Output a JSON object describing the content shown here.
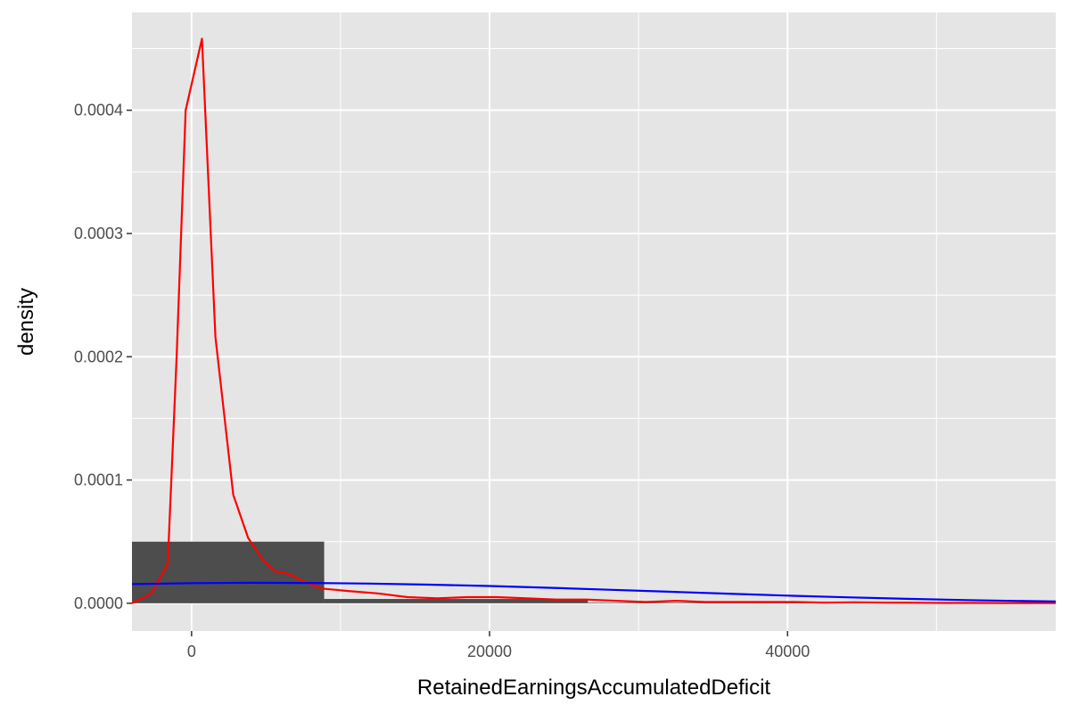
{
  "chart_data": {
    "type": "histogram",
    "title": "",
    "xlabel": "RetainedEarningsAccumulatedDeficit",
    "ylabel": "density",
    "xlim": [
      -4000,
      58000
    ],
    "ylim": [
      -2.25e-05,
      0.0004793
    ],
    "x_ticks": [
      {
        "value": 0,
        "label": "0"
      },
      {
        "value": 20000,
        "label": "20000"
      },
      {
        "value": 40000,
        "label": "40000"
      }
    ],
    "x_minor_ticks": [
      10000,
      30000,
      50000
    ],
    "y_ticks": [
      {
        "value": 0,
        "label": "0.0000"
      },
      {
        "value": 0.0001,
        "label": "0.0001"
      },
      {
        "value": 0.0002,
        "label": "0.0002"
      },
      {
        "value": 0.0003,
        "label": "0.0003"
      },
      {
        "value": 0.0004,
        "label": "0.0004"
      }
    ],
    "y_minor_ticks": [
      5e-05,
      0.00015,
      0.00025,
      0.00035,
      0.00045
    ],
    "grid": true,
    "panel_background": "#e5e5e5",
    "grid_color": "#ffffff",
    "bar_color": "#4d4d4d",
    "bars": [
      {
        "x0": -4000,
        "x1": 8900,
        "density": 5e-05
      },
      {
        "x0": 8900,
        "x1": 26600,
        "density": 3.5e-06
      },
      {
        "x0": 26600,
        "x1": 58000,
        "density": 5e-07
      }
    ],
    "series": [
      {
        "color": "#ff0000",
        "kind": "kernel-density",
        "points": [
          [
            -4000,
            0
          ],
          [
            -2700,
            8e-06
          ],
          [
            -1600,
            3.2e-05
          ],
          [
            -1000,
            0.0002
          ],
          [
            -400,
            0.0004
          ],
          [
            700,
            0.000458
          ],
          [
            1600,
            0.000216
          ],
          [
            2800,
            8.8e-05
          ],
          [
            3800,
            5.3e-05
          ],
          [
            4800,
            3.5e-05
          ],
          [
            5600,
            2.6e-05
          ],
          [
            6500,
            2.4e-05
          ],
          [
            7500,
            1.8e-05
          ],
          [
            8700,
            1.2e-05
          ],
          [
            10500,
            1e-05
          ],
          [
            12500,
            8e-06
          ],
          [
            14500,
            5e-06
          ],
          [
            16500,
            4e-06
          ],
          [
            18500,
            5e-06
          ],
          [
            20500,
            5e-06
          ],
          [
            22500,
            4e-06
          ],
          [
            24500,
            3e-06
          ],
          [
            26500,
            3e-06
          ],
          [
            28500,
            2e-06
          ],
          [
            30500,
            1e-06
          ],
          [
            32500,
            2e-06
          ],
          [
            34500,
            1e-06
          ],
          [
            36500,
            1e-06
          ],
          [
            38500,
            1e-06
          ],
          [
            40500,
            1e-06
          ],
          [
            42500,
            5e-07
          ],
          [
            44500,
            8e-07
          ],
          [
            46500,
            5e-07
          ],
          [
            48500,
            4e-07
          ],
          [
            50500,
            3e-07
          ],
          [
            52500,
            3e-07
          ],
          [
            54500,
            2e-07
          ],
          [
            56500,
            2e-07
          ],
          [
            58000,
            1e-07
          ]
        ]
      },
      {
        "color": "#0000ff",
        "kind": "normal-curve",
        "points": [
          [
            -4000,
            1.55e-05
          ],
          [
            0,
            1.63e-05
          ],
          [
            4000,
            1.66e-05
          ],
          [
            8000,
            1.65e-05
          ],
          [
            12000,
            1.6e-05
          ],
          [
            16000,
            1.51e-05
          ],
          [
            20000,
            1.4e-05
          ],
          [
            24000,
            1.26e-05
          ],
          [
            28000,
            1.1e-05
          ],
          [
            32000,
            9.4e-06
          ],
          [
            36000,
            7.8e-06
          ],
          [
            40000,
            6.2e-06
          ],
          [
            44000,
            4.8e-06
          ],
          [
            48000,
            3.6e-06
          ],
          [
            52000,
            2.6e-06
          ],
          [
            56000,
            1.8e-06
          ],
          [
            58000,
            1.4e-06
          ]
        ]
      }
    ]
  }
}
